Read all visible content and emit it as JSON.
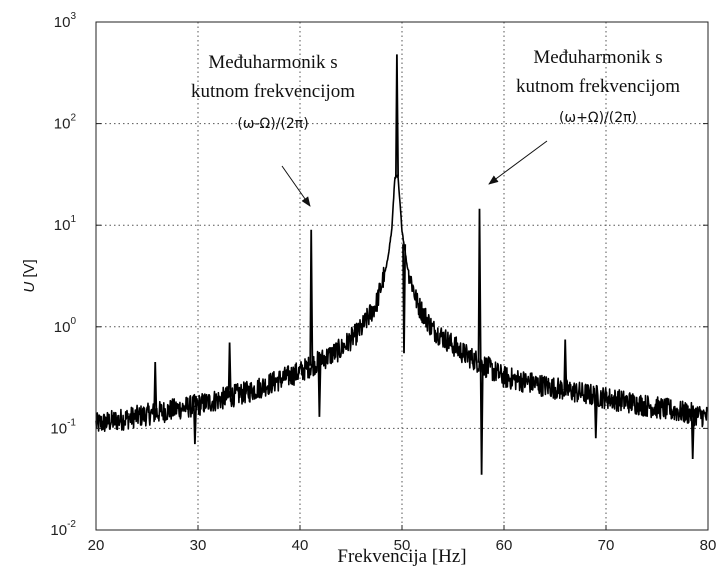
{
  "chart_data": {
    "type": "line",
    "title": "",
    "xlabel": "Frekvencija [Hz]",
    "ylabel": "U [V]",
    "ylabel_italic": "U",
    "ylabel_unit": "[V]",
    "xlim": [
      20,
      80
    ],
    "ylim": [
      0.01,
      1000
    ],
    "yscale": "log",
    "grid": true,
    "grid_style": "dotted",
    "x_ticks": [
      "20",
      "30",
      "40",
      "50",
      "60",
      "70",
      "80"
    ],
    "x_tick_values": [
      20,
      30,
      40,
      50,
      60,
      70,
      80
    ],
    "y_ticks": [
      {
        "base": "10",
        "exp": "-2",
        "value": 0.01
      },
      {
        "base": "10",
        "exp": "-1",
        "value": 0.1
      },
      {
        "base": "10",
        "exp": "0",
        "value": 1
      },
      {
        "base": "10",
        "exp": "1",
        "value": 10
      },
      {
        "base": "10",
        "exp": "2",
        "value": 100
      },
      {
        "base": "10",
        "exp": "3",
        "value": 1000
      }
    ],
    "series": [
      {
        "color": "#000000",
        "baseline": {
          "x": [
            20,
            30,
            35,
            40,
            44,
            46,
            47.5,
            48.5,
            49,
            49.3,
            49.6,
            50,
            50.5,
            51.5,
            53,
            56,
            60,
            65,
            70,
            75,
            80
          ],
          "y": [
            0.11,
            0.17,
            0.23,
            0.36,
            0.6,
            0.95,
            1.7,
            4,
            9,
            30,
            30,
            9,
            4,
            1.7,
            0.95,
            0.55,
            0.32,
            0.25,
            0.2,
            0.16,
            0.13
          ]
        },
        "spikes": [
          {
            "x": 25.8,
            "y": 0.45
          },
          {
            "x": 29.7,
            "y": 0.07
          },
          {
            "x": 33.1,
            "y": 0.7
          },
          {
            "x": 41.1,
            "y": 9.0
          },
          {
            "x": 41.9,
            "y": 0.13
          },
          {
            "x": 49.5,
            "y": 480
          },
          {
            "x": 50.2,
            "y": 0.55
          },
          {
            "x": 57.6,
            "y": 14.5
          },
          {
            "x": 57.8,
            "y": 0.035
          },
          {
            "x": 66.0,
            "y": 0.75
          },
          {
            "x": 69.0,
            "y": 0.08
          },
          {
            "x": 78.5,
            "y": 0.05
          }
        ]
      }
    ],
    "annotations": [
      {
        "line1": "Međuharmonik s",
        "line2": "kutnom frekvencijom",
        "line3": "(ω-Ω)/(2π)",
        "points_to": {
          "x": 41.1,
          "y": 9.0
        }
      },
      {
        "line1": "Međuharmonik s",
        "line2": "kutnom frekvencijom",
        "line3": "(ω+Ω)/(2π)",
        "points_to": {
          "x": 57.6,
          "y": 14.5
        }
      }
    ]
  }
}
